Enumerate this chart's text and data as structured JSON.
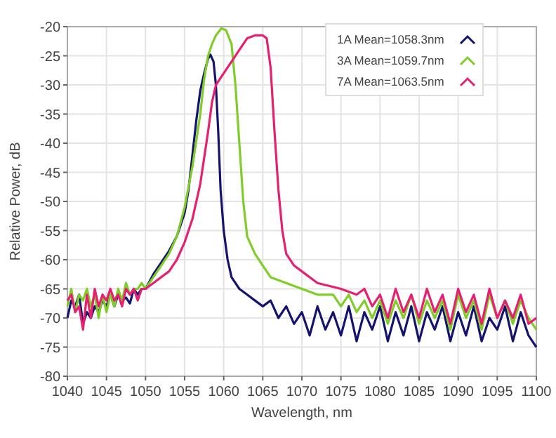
{
  "chart_data": {
    "type": "line",
    "xlabel": "Wavelength, nm",
    "ylabel": "Relative Power, dB",
    "xlim": [
      1040,
      1100
    ],
    "ylim": [
      -80,
      -20
    ],
    "xticks": [
      1040,
      1045,
      1050,
      1055,
      1060,
      1065,
      1070,
      1075,
      1080,
      1085,
      1090,
      1095,
      1100
    ],
    "yticks": [
      -80,
      -75,
      -70,
      -65,
      -60,
      -55,
      -50,
      -45,
      -40,
      -35,
      -30,
      -25,
      -20
    ],
    "grid": true,
    "legend": "top right",
    "marker": "none",
    "line_style": "solid",
    "series": [
      {
        "name": "1A Mean=1058.3nm",
        "color": "#14146e",
        "x": [
          1040,
          1040.5,
          1041,
          1041.5,
          1042,
          1042.5,
          1043,
          1043.5,
          1044,
          1044.5,
          1045,
          1045.5,
          1046,
          1046.5,
          1047,
          1047.5,
          1048,
          1048.5,
          1049,
          1049.5,
          1050,
          1051,
          1052,
          1053,
          1054,
          1055,
          1055.5,
          1056,
          1056.5,
          1057,
          1057.5,
          1058,
          1058.3,
          1058.7,
          1059,
          1059.3,
          1059.6,
          1060,
          1060.5,
          1061,
          1062,
          1063,
          1064,
          1065,
          1066,
          1067,
          1068,
          1069,
          1070,
          1071,
          1072,
          1073,
          1074,
          1075,
          1076,
          1077,
          1078,
          1079,
          1080,
          1081,
          1082,
          1083,
          1084,
          1085,
          1086,
          1087,
          1088,
          1089,
          1090,
          1091,
          1092,
          1093,
          1094,
          1095,
          1096,
          1097,
          1098,
          1099,
          1100
        ],
        "values": [
          -70,
          -67,
          -68,
          -66,
          -71,
          -69,
          -70,
          -68,
          -69,
          -67,
          -68,
          -66,
          -68,
          -66,
          -67,
          -66.5,
          -67.5,
          -65,
          -66,
          -65,
          -65,
          -62.5,
          -60.5,
          -58.5,
          -56,
          -52,
          -48,
          -42,
          -36,
          -31,
          -28,
          -25.5,
          -24.8,
          -26,
          -30,
          -38,
          -48,
          -55,
          -60,
          -63,
          -65,
          -66,
          -67,
          -68,
          -67,
          -70,
          -68,
          -71,
          -69,
          -73,
          -68,
          -72,
          -69,
          -73,
          -68,
          -74,
          -69,
          -72,
          -68,
          -74,
          -69,
          -73,
          -68,
          -74,
          -69,
          -72,
          -68,
          -74,
          -69,
          -73,
          -68,
          -74,
          -70,
          -72,
          -68,
          -74,
          -69,
          -73,
          -75
        ]
      },
      {
        "name": "3A Mean=1059.7nm",
        "color": "#80cc28",
        "x": [
          1040,
          1040.5,
          1041,
          1041.5,
          1042,
          1042.5,
          1043,
          1043.5,
          1044,
          1044.5,
          1045,
          1045.5,
          1046,
          1046.5,
          1047,
          1047.5,
          1048,
          1048.5,
          1049,
          1049.5,
          1050,
          1051,
          1052,
          1053,
          1054,
          1055,
          1056,
          1057,
          1057.5,
          1058,
          1058.5,
          1059,
          1059.7,
          1060.3,
          1061,
          1061.5,
          1062,
          1062.5,
          1063,
          1064,
          1065,
          1066,
          1068,
          1070,
          1072,
          1074,
          1075,
          1076,
          1077,
          1078,
          1079,
          1080,
          1081,
          1082,
          1083,
          1084,
          1085,
          1086,
          1087,
          1088,
          1089,
          1090,
          1091,
          1092,
          1093,
          1094,
          1095,
          1096,
          1097,
          1098,
          1099,
          1100
        ],
        "values": [
          -68,
          -65,
          -69,
          -66,
          -67,
          -65,
          -68,
          -66,
          -70,
          -66,
          -69,
          -66,
          -68,
          -65,
          -67,
          -64,
          -66,
          -65,
          -65,
          -64,
          -65,
          -63,
          -61,
          -59,
          -56,
          -51,
          -44,
          -35,
          -29,
          -25,
          -23,
          -21.5,
          -20.3,
          -20.6,
          -23,
          -30,
          -40,
          -50,
          -56,
          -59,
          -61,
          -63,
          -64,
          -65,
          -66,
          -66,
          -68,
          -66,
          -69,
          -67,
          -70,
          -67,
          -71,
          -67,
          -70,
          -66,
          -71,
          -67,
          -70,
          -67,
          -72,
          -66,
          -70,
          -67,
          -72,
          -66,
          -70,
          -67,
          -71,
          -67,
          -70,
          -72
        ]
      },
      {
        "name": "7A Mean=1063.5nm",
        "color": "#e62070",
        "x": [
          1040,
          1040.5,
          1041,
          1041.5,
          1042,
          1042.5,
          1043,
          1043.5,
          1044,
          1044.5,
          1045,
          1045.5,
          1046,
          1046.5,
          1047,
          1047.5,
          1048,
          1048.5,
          1049,
          1049.5,
          1050,
          1051,
          1052,
          1053,
          1054,
          1055,
          1056,
          1057,
          1058,
          1058.5,
          1059,
          1060,
          1061,
          1062,
          1063,
          1064,
          1065,
          1065.5,
          1066,
          1066.5,
          1067,
          1067.5,
          1068,
          1069,
          1070,
          1072,
          1075,
          1077,
          1078,
          1079,
          1080,
          1081,
          1082,
          1083,
          1084,
          1085,
          1086,
          1087,
          1088,
          1089,
          1090,
          1091,
          1092,
          1093,
          1094,
          1095,
          1096,
          1097,
          1098,
          1099,
          1100
        ],
        "values": [
          -67,
          -66,
          -69,
          -68,
          -72,
          -66,
          -70,
          -65,
          -68,
          -66,
          -67,
          -65,
          -67,
          -66,
          -68,
          -65,
          -66,
          -65,
          -67,
          -65,
          -65,
          -64,
          -63,
          -62,
          -60,
          -57,
          -53,
          -47,
          -38,
          -33,
          -30,
          -28,
          -26,
          -24,
          -22,
          -21.5,
          -21.5,
          -22,
          -27,
          -38,
          -48,
          -55,
          -59,
          -61,
          -62,
          -64,
          -65,
          -66,
          -65,
          -68,
          -66,
          -70,
          -65,
          -69,
          -66,
          -70,
          -65,
          -69,
          -66,
          -71,
          -65,
          -69,
          -66,
          -71,
          -65,
          -70,
          -67,
          -70,
          -66,
          -71,
          -70
        ]
      }
    ]
  }
}
